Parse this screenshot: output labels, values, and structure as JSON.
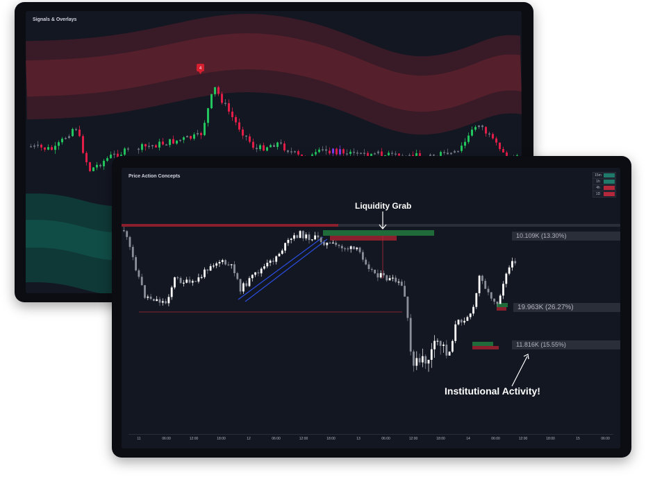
{
  "back_panel": {
    "title": "Signals & Overlays",
    "signal_marker": "4"
  },
  "front_panel": {
    "title": "Price Action Concepts",
    "timeframes": [
      {
        "label": "15m",
        "color": "#1f7a6b"
      },
      {
        "label": "1h",
        "color": "#1f7a6b"
      },
      {
        "label": "4h",
        "color": "#b3283a"
      },
      {
        "label": "1D",
        "color": "#b3283a"
      }
    ],
    "levels": [
      {
        "label": "10.109K (13.30%)"
      },
      {
        "label": "19.963K (26.27%)"
      },
      {
        "label": "11.816K (15.55%)"
      }
    ],
    "top_level_label": "10.109K (13.30%)",
    "callouts": {
      "liquidity_grab": "Liquidity Grab",
      "institutional_activity": "Institutional Activity!"
    },
    "x_axis_ticks": [
      "11",
      "06:00",
      "12:00",
      "18:00",
      "12",
      "06:00",
      "12:00",
      "18:00",
      "13",
      "06:00",
      "12:00",
      "18:00",
      "14",
      "06:00",
      "12:00",
      "18:00",
      "15",
      "06:00"
    ]
  },
  "colors": {
    "bg": "#131722",
    "bull_back": "#22c55e",
    "bear_back": "#e11d48",
    "bull_front": "#ffffff",
    "bear_front": "#8b8f99",
    "band_red": "#5a1f2b",
    "band_teal": "#0f3d3a",
    "green_zone": "#1f6b3a",
    "red_zone": "#8a1f2e",
    "blue_line": "#2a4bd7"
  }
}
